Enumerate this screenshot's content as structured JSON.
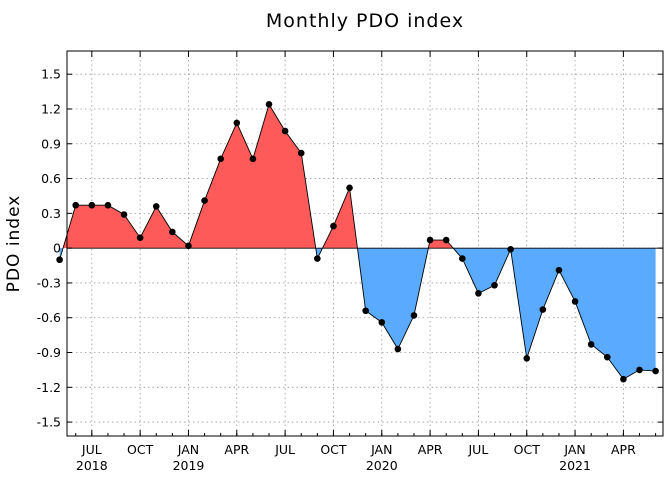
{
  "chart_data": {
    "type": "area",
    "title": "Monthly PDO index",
    "xlabel": "",
    "ylabel": "PDO index",
    "ylim": [
      -1.62,
      1.7
    ],
    "xlim": [
      "2018-05-15",
      "2021-06-15"
    ],
    "grid": true,
    "legend": "none",
    "positive_color": "#ff5a5a",
    "negative_color": "#5aabff",
    "marker_color": "#000000",
    "y_ticks": [
      "1.5",
      "1.2",
      "0.9",
      "0.6",
      "0.3",
      "0",
      "-0.3",
      "-0.6",
      "-0.9",
      "-1.2",
      "-1.5"
    ],
    "x_ticks": [
      {
        "date": "2018-07",
        "month": "JUL",
        "year": "2018"
      },
      {
        "date": "2018-10",
        "month": "OCT",
        "year": ""
      },
      {
        "date": "2019-01",
        "month": "JAN",
        "year": "2019"
      },
      {
        "date": "2019-04",
        "month": "APR",
        "year": ""
      },
      {
        "date": "2019-07",
        "month": "JUL",
        "year": ""
      },
      {
        "date": "2019-10",
        "month": "OCT",
        "year": ""
      },
      {
        "date": "2020-01",
        "month": "JAN",
        "year": "2020"
      },
      {
        "date": "2020-04",
        "month": "APR",
        "year": ""
      },
      {
        "date": "2020-07",
        "month": "JUL",
        "year": ""
      },
      {
        "date": "2020-10",
        "month": "OCT",
        "year": ""
      },
      {
        "date": "2021-01",
        "month": "JAN",
        "year": "2021"
      },
      {
        "date": "2021-04",
        "month": "APR",
        "year": ""
      }
    ],
    "x": [
      "2018-05",
      "2018-06",
      "2018-07",
      "2018-08",
      "2018-09",
      "2018-10",
      "2018-11",
      "2018-12",
      "2019-01",
      "2019-02",
      "2019-03",
      "2019-04",
      "2019-05",
      "2019-06",
      "2019-07",
      "2019-08",
      "2019-09",
      "2019-10",
      "2019-11",
      "2019-12",
      "2020-01",
      "2020-02",
      "2020-03",
      "2020-04",
      "2020-05",
      "2020-06",
      "2020-07",
      "2020-08",
      "2020-09",
      "2020-10",
      "2020-11",
      "2020-12",
      "2021-01",
      "2021-02",
      "2021-03",
      "2021-04",
      "2021-05",
      "2021-06"
    ],
    "values": [
      -0.1,
      0.37,
      0.37,
      0.37,
      0.29,
      0.09,
      0.36,
      0.14,
      0.02,
      0.41,
      0.77,
      1.08,
      0.77,
      1.24,
      1.01,
      0.82,
      -0.09,
      0.19,
      0.52,
      -0.54,
      -0.64,
      -0.87,
      -0.58,
      0.07,
      0.07,
      -0.09,
      -0.39,
      -0.32,
      -0.01,
      -0.95,
      -0.53,
      -0.19,
      -0.46,
      -0.83,
      -0.94,
      -1.13,
      -1.05,
      -1.06
    ]
  }
}
